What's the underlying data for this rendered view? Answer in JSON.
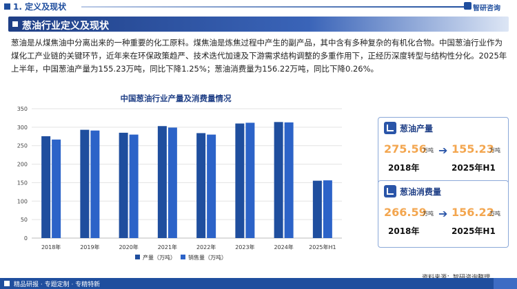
{
  "header": {
    "section": "1. 定义及现状",
    "brand": "智研咨询"
  },
  "banner": {
    "title": "葱油行业定义及现状"
  },
  "intro": {
    "text": "葱油是从煤焦油中分离出来的一种重要的化工原料。煤焦油是炼焦过程中产生的副产品，其中含有多种复杂的有机化合物。中国葱油行业作为煤化工产业链的关键环节，近年来在环保政策趋严、技术迭代加速及下游需求结构调整的多重作用下，正经历深度转型与结构性分化。2025年上半年，中国葱油产量为155.23万吨，同比下降1.25%；葱油消费量为156.22万吨，同比下降0.26%。"
  },
  "cards": {
    "production": {
      "label": "葱油产量",
      "from_value": "275.56",
      "from_unit": "万吨",
      "to_value": "155.23",
      "to_unit": "万吨",
      "from_year": "2018年",
      "to_year": "2025年H1"
    },
    "consumption": {
      "label": "葱油消费量",
      "from_value": "266.59",
      "from_unit": "万吨",
      "to_value": "156.22",
      "to_unit": "万吨",
      "from_year": "2018年",
      "to_year": "2025年H1"
    }
  },
  "source": "资料来源：智研咨询整理",
  "footer": {
    "text": "精品研报 · 专题定制 · 专精特新"
  },
  "colors": {
    "accent": "#1f4e9e",
    "production_bar": "#1f4e9e",
    "sales_bar": "#2c63c8",
    "highlight_number": "#f3a64f"
  },
  "chart_data": {
    "type": "bar",
    "title": "中国葱油行业产量及消费量情况",
    "categories": [
      "2018年",
      "2019年",
      "2020年",
      "2021年",
      "2022年",
      "2023年",
      "2024年",
      "2025年H1"
    ],
    "series": [
      {
        "name": "产量（万吨）",
        "values": [
          275.56,
          293,
          285,
          303,
          284,
          310,
          314,
          155.23
        ]
      },
      {
        "name": "销售量（万吨）",
        "values": [
          266.59,
          291,
          280,
          299,
          280,
          312,
          313,
          156.22
        ]
      }
    ],
    "yticks": [
      0,
      50,
      100,
      150,
      200,
      250,
      300,
      350
    ],
    "ylim": [
      0,
      350
    ],
    "grid": true,
    "legend_position": "bottom"
  }
}
